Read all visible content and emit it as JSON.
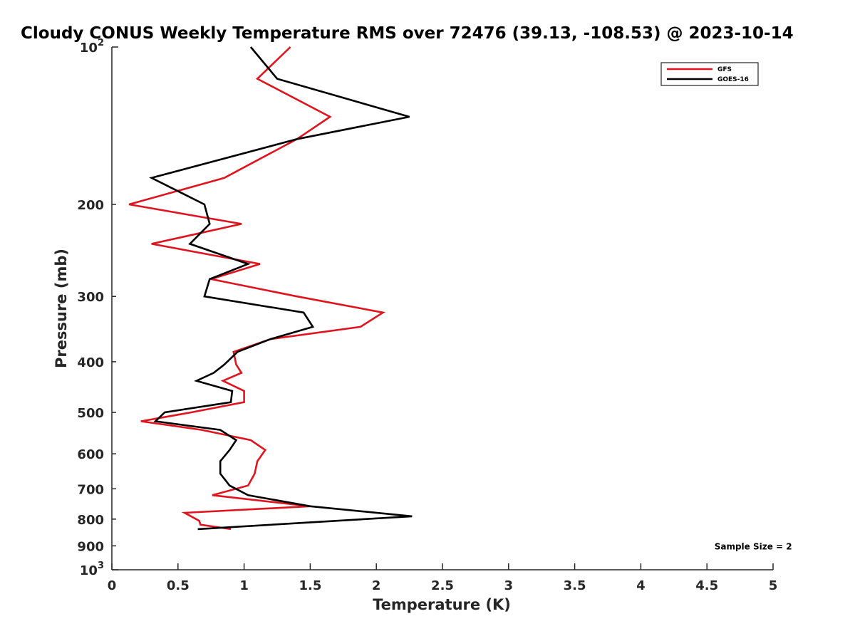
{
  "chart_data": {
    "type": "line",
    "title": "Cloudy CONUS Weekly Temperature RMS over 72476 (39.13, -108.53) @ 2023-10-14",
    "xlabel": "Temperature (K)",
    "ylabel": "Pressure (mb)",
    "xlim": [
      0,
      5
    ],
    "ylim": [
      100,
      1000
    ],
    "y_scale": "log",
    "y_reversed": true,
    "x_ticks": [
      "0",
      "0.5",
      "1",
      "1.5",
      "2",
      "2.5",
      "3",
      "3.5",
      "4",
      "4.5",
      "5"
    ],
    "y_ticks": [
      {
        "value": 100,
        "base": "10",
        "exp": "2"
      },
      {
        "value": 200,
        "label": "200"
      },
      {
        "value": 300,
        "label": "300"
      },
      {
        "value": 400,
        "label": "400"
      },
      {
        "value": 500,
        "label": "500"
      },
      {
        "value": 600,
        "label": "600"
      },
      {
        "value": 700,
        "label": "700"
      },
      {
        "value": 800,
        "label": "800"
      },
      {
        "value": 900,
        "label": "900"
      },
      {
        "value": 1000,
        "base": "10",
        "exp": "3"
      }
    ],
    "legend_position": "top-right",
    "grid": false,
    "series": [
      {
        "name": "GFS",
        "color": "#e0141e",
        "points": [
          [
            1.35,
            100
          ],
          [
            1.1,
            115
          ],
          [
            1.65,
            136
          ],
          [
            1.4,
            150
          ],
          [
            0.85,
            178
          ],
          [
            0.13,
            200
          ],
          [
            0.98,
            218
          ],
          [
            0.3,
            238
          ],
          [
            1.12,
            260
          ],
          [
            0.75,
            278
          ],
          [
            1.4,
            300
          ],
          [
            2.05,
            322
          ],
          [
            1.88,
            343
          ],
          [
            1.2,
            362
          ],
          [
            0.92,
            383
          ],
          [
            0.94,
            405
          ],
          [
            0.98,
            420
          ],
          [
            0.84,
            435
          ],
          [
            1.0,
            455
          ],
          [
            1.0,
            478
          ],
          [
            0.6,
            500
          ],
          [
            0.22,
            520
          ],
          [
            0.68,
            540
          ],
          [
            1.05,
            565
          ],
          [
            1.16,
            590
          ],
          [
            1.1,
            620
          ],
          [
            1.08,
            655
          ],
          [
            1.03,
            690
          ],
          [
            0.76,
            720
          ],
          [
            1.5,
            756
          ],
          [
            0.55,
            778
          ],
          [
            0.66,
            806
          ],
          [
            0.67,
            820
          ],
          [
            0.9,
            836
          ]
        ]
      },
      {
        "name": "GOES-16",
        "color": "#000000",
        "points": [
          [
            1.05,
            100
          ],
          [
            1.25,
            115
          ],
          [
            2.25,
            136
          ],
          [
            1.4,
            150
          ],
          [
            0.3,
            178
          ],
          [
            0.7,
            200
          ],
          [
            0.74,
            218
          ],
          [
            0.59,
            238
          ],
          [
            1.03,
            260
          ],
          [
            0.74,
            278
          ],
          [
            0.7,
            300
          ],
          [
            1.45,
            322
          ],
          [
            1.52,
            343
          ],
          [
            1.2,
            362
          ],
          [
            0.95,
            383
          ],
          [
            0.85,
            405
          ],
          [
            0.77,
            420
          ],
          [
            0.64,
            435
          ],
          [
            0.91,
            455
          ],
          [
            0.9,
            478
          ],
          [
            0.4,
            500
          ],
          [
            0.33,
            520
          ],
          [
            0.82,
            540
          ],
          [
            0.94,
            565
          ],
          [
            0.89,
            590
          ],
          [
            0.82,
            620
          ],
          [
            0.82,
            655
          ],
          [
            0.89,
            690
          ],
          [
            1.03,
            720
          ],
          [
            1.5,
            756
          ],
          [
            2.27,
            790
          ],
          [
            0.65,
            836
          ]
        ]
      }
    ],
    "annotations": [
      {
        "text": "Sample Size = 2",
        "x": 4.85,
        "y": 900
      }
    ]
  }
}
